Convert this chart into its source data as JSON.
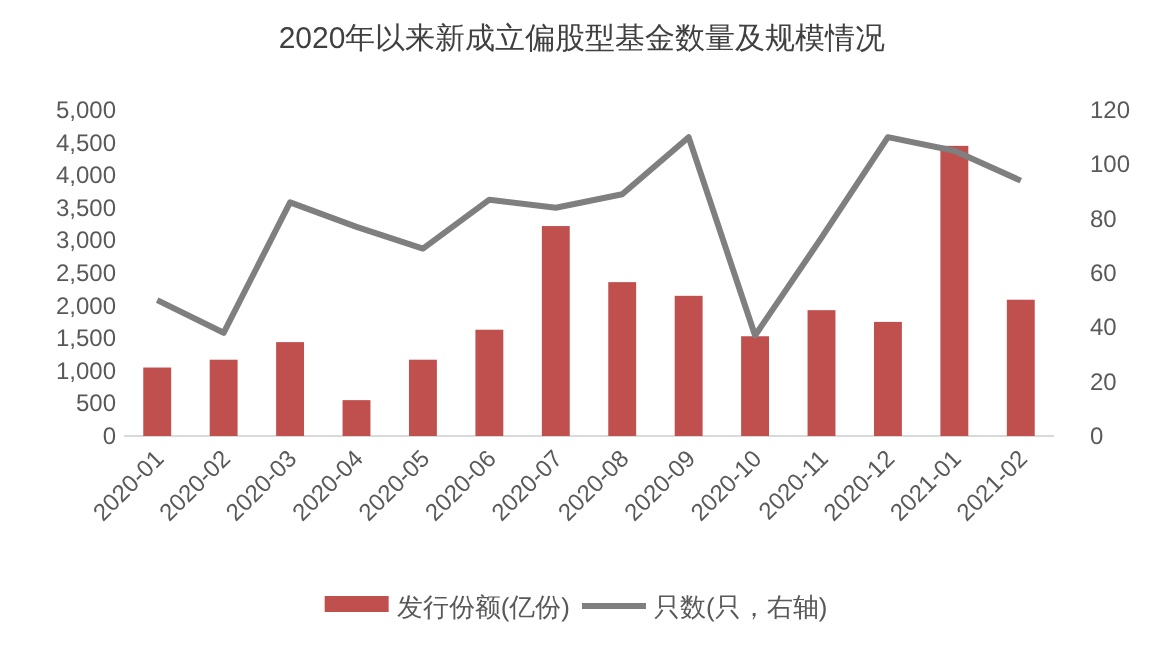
{
  "chart_data": {
    "type": "bar",
    "title": "2020年以来新成立偏股型基金数量及规模情况",
    "categories": [
      "2020-01",
      "2020-02",
      "2020-03",
      "2020-04",
      "2020-05",
      "2020-06",
      "2020-07",
      "2020-08",
      "2020-09",
      "2020-10",
      "2020-11",
      "2020-12",
      "2021-01",
      "2021-02"
    ],
    "series": [
      {
        "name": "发行份额(亿份)",
        "color": "#c0504d",
        "values": [
          1050,
          1170,
          1440,
          550,
          1170,
          1630,
          3220,
          2360,
          2150,
          1530,
          1930,
          1750,
          4450,
          2090
        ]
      },
      {
        "name": "只数(只，右轴)",
        "type": "line",
        "axis": "y2",
        "color": "#7f7f7f",
        "values": [
          50,
          38,
          86,
          77,
          69,
          87,
          84,
          89,
          110,
          37,
          73,
          110,
          105,
          94
        ]
      }
    ],
    "ylim": [
      0,
      5000
    ],
    "yticks": [
      0,
      {
        "value": 500,
        "label": "500"
      },
      {
        "value": 1000,
        "label": "1,000"
      },
      {
        "value": 1500,
        "label": "1,500"
      },
      {
        "value": 2000,
        "label": "2,000"
      },
      {
        "value": 2500,
        "label": "2,500"
      },
      {
        "value": 3000,
        "label": "3,000"
      },
      {
        "value": 3500,
        "label": "3,500"
      },
      {
        "value": 4000,
        "label": "4,000"
      },
      {
        "value": 4500,
        "label": "4,500"
      },
      {
        "value": 5000,
        "label": "5,000"
      }
    ],
    "y2lim": [
      0,
      120
    ],
    "y2ticks": [
      0,
      20,
      40,
      60,
      80,
      100,
      120
    ],
    "grid": false,
    "legend": "bottom"
  }
}
